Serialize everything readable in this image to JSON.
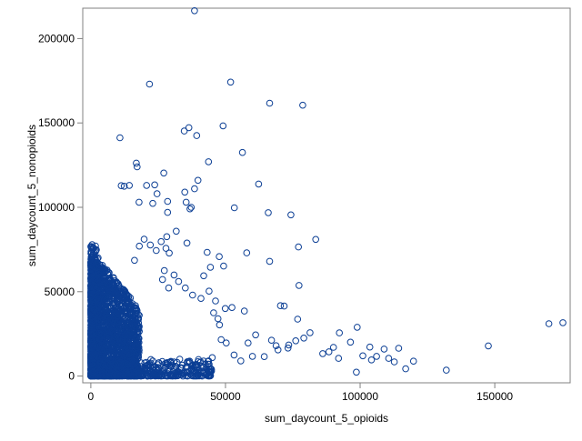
{
  "chart_data": {
    "type": "scatter",
    "title": "",
    "xlabel": "sum_daycount_5_opioids",
    "ylabel": "sum_daycount_5_nonopioids",
    "xlim": [
      -3000,
      178000
    ],
    "ylim": [
      -4000,
      218000
    ],
    "x_ticks": [
      0,
      50000,
      100000,
      150000
    ],
    "x_tick_labels": [
      "0",
      "50000",
      "100000",
      "150000"
    ],
    "y_ticks": [
      0,
      50000,
      100000,
      150000,
      200000
    ],
    "y_tick_labels": [
      "0",
      "50000",
      "100000",
      "150000",
      "200000"
    ],
    "grid": false,
    "legend": "none",
    "marker": "open-circle",
    "marker_color": "#0b3e94",
    "series": [
      {
        "x": [
          38500,
          21800,
          51900,
          66400,
          78700,
          10800,
          16900,
          36400,
          34700,
          49100,
          39300,
          56300,
          17200,
          43700,
          27100,
          39800,
          23700,
          62300,
          20700,
          34900,
          38500,
          24600,
          12400,
          14300,
          11300,
          65900,
          28500,
          74300,
          53300,
          37300,
          36800,
          35400,
          23000,
          28500,
          17900,
          83500,
          77100,
          57900,
          66400,
          77300,
          70400,
          71800,
          49900,
          45600,
          47200,
          47800,
          76800,
          92300,
          98900,
          170100,
          175300,
          147600,
          132000,
          119800,
          114300,
          108900,
          101000,
          104200,
          110600,
          116900,
          98600,
          92000,
          88400,
          79100,
          76100,
          73500,
          69500,
          67100,
          64400,
          60000,
          58400,
          55700,
          53200,
          50300,
          48400,
          45100,
          42600,
          40000,
          36300,
          33000,
          30100,
          27600,
          24200,
          22300,
          20600,
          18900,
          44400,
          41900,
          47700,
          49300,
          43200,
          35700,
          31700,
          28200,
          26100,
          24300,
          22100,
          19800,
          18000,
          16200,
          29100,
          27900,
          28900,
          26600,
          27300,
          30900,
          32600,
          35100,
          37800,
          40900,
          43900,
          46300,
          52400,
          57000,
          61200,
          68800,
          73200,
          86100,
          81400,
          90100,
          96400,
          103600,
          106100,
          112700
        ],
        "y": [
          216500,
          173000,
          174200,
          161700,
          160500,
          141200,
          126200,
          147200,
          145200,
          148300,
          142500,
          132500,
          124000,
          127000,
          120300,
          116000,
          113300,
          113800,
          113000,
          109000,
          111000,
          108000,
          112500,
          113000,
          112800,
          96800,
          103500,
          95500,
          99700,
          100000,
          99100,
          103000,
          102300,
          97000,
          103000,
          81000,
          76500,
          73000,
          68000,
          53700,
          41700,
          41500,
          40000,
          37500,
          34000,
          30300,
          33700,
          25600,
          28900,
          31000,
          31600,
          17900,
          3500,
          8800,
          16500,
          16000,
          12000,
          9600,
          10500,
          4300,
          2300,
          10500,
          14400,
          22500,
          20900,
          18400,
          15500,
          21200,
          11500,
          11700,
          19600,
          9000,
          12500,
          19600,
          21600,
          10900,
          7000,
          9800,
          8600,
          10000,
          6300,
          7400,
          5200,
          9800,
          8100,
          3000,
          64500,
          59400,
          70800,
          65200,
          73300,
          78800,
          85800,
          82600,
          79700,
          74400,
          77700,
          81100,
          77000,
          68600,
          72900,
          75700,
          52200,
          57200,
          62500,
          59900,
          56000,
          52200,
          48000,
          46000,
          50300,
          44500,
          40600,
          38500,
          24400,
          18000,
          16600,
          13300,
          25700,
          17000,
          20100,
          17200,
          11700,
          8400
        ]
      }
    ],
    "dense_cluster": {
      "x_range": [
        0,
        18000
      ],
      "y_range": [
        0,
        72000
      ]
    }
  }
}
